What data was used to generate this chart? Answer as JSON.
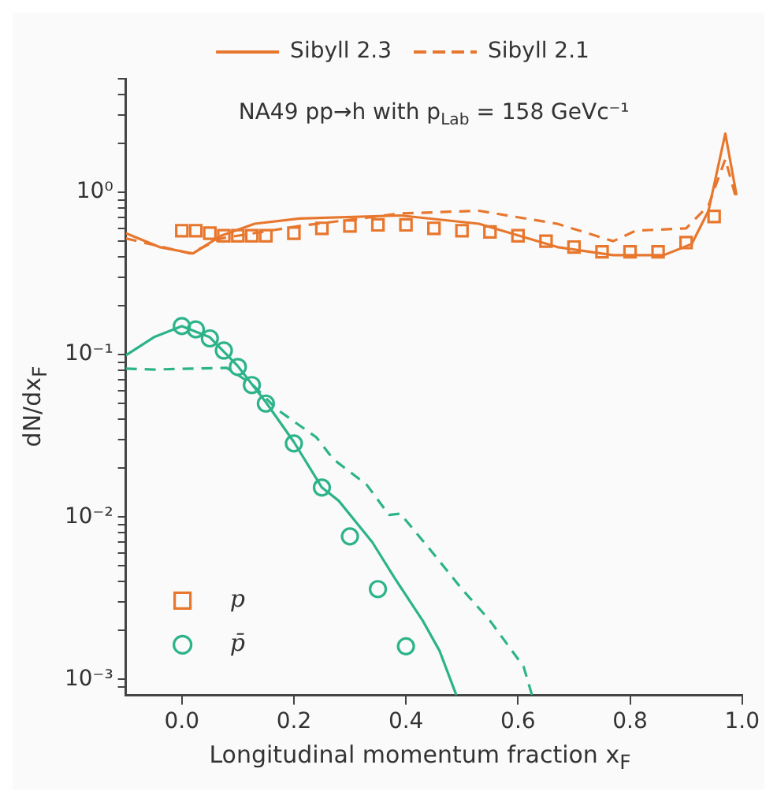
{
  "chart_data": {
    "type": "line",
    "xlabel": "Longitudinal momentum fraction x$_{F}$",
    "ylabel": "dN/dx$_{F}$",
    "annotations": [
      "NA49 pp→h with p$_{Lab}$ = 158 GeVc⁻¹"
    ],
    "log": "y",
    "xlim": [
      -0.1,
      1.0
    ],
    "xticks": [
      {
        "value": 0,
        "label": "0.0"
      },
      {
        "value": 0.2,
        "label": "0.2"
      },
      {
        "value": 0.4,
        "label": "0.4"
      },
      {
        "value": 0.6,
        "label": "0.6"
      },
      {
        "value": 0.8,
        "label": "0.8"
      },
      {
        "value": 1,
        "label": "1.0"
      }
    ],
    "ylim": [
      0.0008,
      5
    ],
    "yticks": [
      {
        "value": 0.0009,
        "label": null
      },
      {
        "value": 0.001,
        "label": "10⁻³"
      },
      {
        "value": 0.002,
        "label": null
      },
      {
        "value": 0.003,
        "label": null
      },
      {
        "value": 0.004,
        "label": null
      },
      {
        "value": 0.005,
        "label": null
      },
      {
        "value": 0.006,
        "label": null
      },
      {
        "value": 0.007,
        "label": null
      },
      {
        "value": 0.008,
        "label": null
      },
      {
        "value": 0.009,
        "label": null
      },
      {
        "value": 0.01,
        "label": "10⁻²"
      },
      {
        "value": 0.02,
        "label": null
      },
      {
        "value": 0.03,
        "label": null
      },
      {
        "value": 0.04,
        "label": null
      },
      {
        "value": 0.05,
        "label": null
      },
      {
        "value": 0.06,
        "label": null
      },
      {
        "value": 0.07,
        "label": null
      },
      {
        "value": 0.08,
        "label": null
      },
      {
        "value": 0.09,
        "label": null
      },
      {
        "value": 0.1,
        "label": "10⁻¹"
      },
      {
        "value": 0.2,
        "label": null
      },
      {
        "value": 0.3,
        "label": null
      },
      {
        "value": 0.4,
        "label": null
      },
      {
        "value": 0.5,
        "label": null
      },
      {
        "value": 0.6,
        "label": null
      },
      {
        "value": 0.7,
        "label": null
      },
      {
        "value": 0.8,
        "label": null
      },
      {
        "value": 0.9,
        "label": null
      },
      {
        "value": 1,
        "label": "10⁰"
      },
      {
        "value": 2,
        "label": null
      },
      {
        "value": 3,
        "label": null
      },
      {
        "value": 4,
        "label": null
      },
      {
        "value": 5,
        "label": null
      }
    ],
    "grid": false,
    "legend": "top",
    "series": [
      {
        "name": "Sibyll 2.3",
        "type": "line",
        "color": "#e8772e",
        "line_style": "solid",
        "marker": "none",
        "x": [
          -0.1,
          -0.04,
          0.02,
          0.07,
          0.13,
          0.21,
          0.39,
          0.53,
          0.67,
          0.77,
          0.86,
          0.91,
          0.94,
          0.97,
          0.99
        ],
        "values": [
          0.56,
          0.46,
          0.42,
          0.54,
          0.64,
          0.69,
          0.72,
          0.64,
          0.46,
          0.41,
          0.41,
          0.48,
          0.77,
          2.3,
          0.96
        ]
      },
      {
        "name": "Sibyll 2.1",
        "type": "line",
        "color": "#e8772e",
        "line_style": "dashed",
        "marker": "none",
        "x": [
          -0.1,
          0.015,
          0.07,
          0.21,
          0.39,
          0.53,
          0.67,
          0.77,
          0.81,
          0.9,
          0.94,
          0.97,
          0.99
        ],
        "values": [
          0.52,
          0.42,
          0.52,
          0.62,
          0.74,
          0.77,
          0.64,
          0.5,
          0.58,
          0.6,
          0.83,
          1.6,
          0.9
        ]
      },
      {
        "type": "line",
        "color": "#2db38a",
        "line_style": "solid",
        "marker": "none",
        "x": [
          -0.1,
          -0.05,
          0,
          0.05,
          0.1,
          0.15,
          0.2,
          0.25,
          0.28,
          0.34,
          0.38,
          0.43,
          0.46,
          0.49
        ],
        "values": [
          0.099,
          0.128,
          0.15,
          0.128,
          0.085,
          0.051,
          0.029,
          0.0152,
          0.0126,
          0.007,
          0.0042,
          0.0023,
          0.0015,
          0.0008
        ]
      },
      {
        "type": "line",
        "color": "#2db38a",
        "line_style": "dashed",
        "marker": "none",
        "x": [
          -0.1,
          -0.05,
          0.08,
          0.125,
          0.17,
          0.24,
          0.27,
          0.33,
          0.37,
          0.39,
          0.44,
          0.5,
          0.55,
          0.61,
          0.625
        ],
        "values": [
          0.082,
          0.081,
          0.083,
          0.066,
          0.046,
          0.031,
          0.0228,
          0.0158,
          0.0103,
          0.0105,
          0.0065,
          0.0036,
          0.0023,
          0.0012,
          0.0008
        ]
      },
      {
        "name": "p",
        "type": "scatter",
        "color": "#e8772e",
        "marker": "square",
        "x": [
          0,
          0.025,
          0.05,
          0.075,
          0.1,
          0.125,
          0.15,
          0.2,
          0.25,
          0.3,
          0.35,
          0.4,
          0.45,
          0.5,
          0.55,
          0.6,
          0.65,
          0.7,
          0.75,
          0.8,
          0.85,
          0.9,
          0.95
        ],
        "values": [
          0.58,
          0.58,
          0.56,
          0.54,
          0.54,
          0.54,
          0.54,
          0.56,
          0.6,
          0.62,
          0.63,
          0.63,
          0.6,
          0.58,
          0.57,
          0.54,
          0.5,
          0.46,
          0.43,
          0.43,
          0.43,
          0.49,
          0.71
        ]
      },
      {
        "name": "p̄",
        "type": "scatter",
        "color": "#2db38a",
        "marker": "circle",
        "x": [
          0,
          0.025,
          0.05,
          0.075,
          0.1,
          0.125,
          0.15,
          0.2,
          0.25,
          0.3,
          0.35,
          0.4
        ],
        "values": [
          0.15,
          0.143,
          0.126,
          0.106,
          0.084,
          0.065,
          0.05,
          0.0284,
          0.0152,
          0.0076,
          0.0036,
          0.0016
        ]
      }
    ]
  }
}
